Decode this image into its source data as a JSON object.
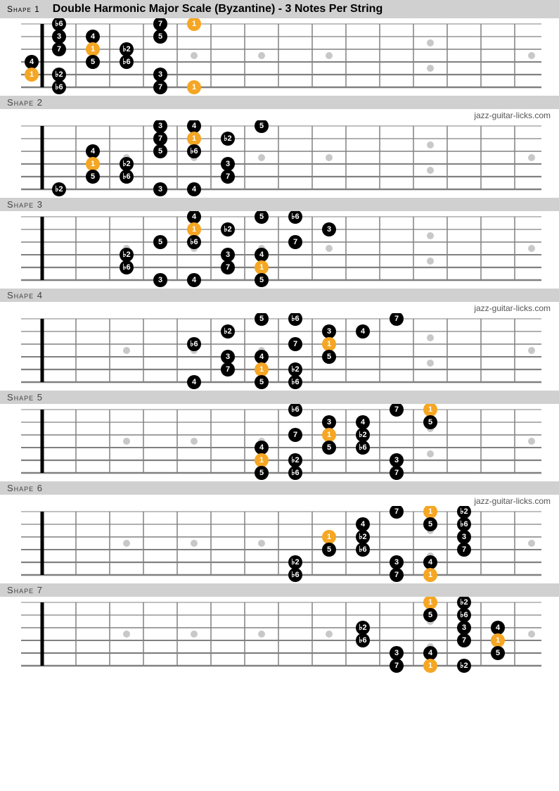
{
  "title": "Double Harmonic Major Scale (Byzantine) - 3 Notes Per String",
  "credit": "jazz-guitar-licks.com",
  "layout": {
    "fret_count": 15,
    "fret_width": 48,
    "fret0_width": 30,
    "string_spacing": 18,
    "board_width": 740,
    "board_height": 110,
    "dot_radius": 10,
    "marker_frets": [
      3,
      5,
      7,
      9,
      12,
      15
    ],
    "double_marker_frets": [
      12
    ],
    "colors": {
      "string": "#808080",
      "fret_line": "#808080",
      "nut": "#000000",
      "marker": "#c8c8c8",
      "note": "#000000",
      "note_root": "#f5a623",
      "note_text": "#ffffff"
    }
  },
  "shapes": [
    {
      "label": "Shape 1",
      "show_credit": false,
      "notes": [
        {
          "s": 1,
          "f": 1,
          "t": "♭6",
          "r": 0
        },
        {
          "s": 1,
          "f": 4,
          "t": "7",
          "r": 0
        },
        {
          "s": 1,
          "f": 5,
          "t": "1",
          "r": 1
        },
        {
          "s": 2,
          "f": 1,
          "t": "3",
          "r": 0
        },
        {
          "s": 2,
          "f": 2,
          "t": "4",
          "r": 0
        },
        {
          "s": 2,
          "f": 4,
          "t": "5",
          "r": 0
        },
        {
          "s": 3,
          "f": 1,
          "t": "7",
          "r": 0
        },
        {
          "s": 3,
          "f": 2,
          "t": "1",
          "r": 1
        },
        {
          "s": 3,
          "f": 3,
          "t": "♭2",
          "r": 0
        },
        {
          "s": 4,
          "f": 0,
          "t": "4",
          "r": 0
        },
        {
          "s": 4,
          "f": 2,
          "t": "5",
          "r": 0
        },
        {
          "s": 4,
          "f": 3,
          "t": "♭6",
          "r": 0
        },
        {
          "s": 5,
          "f": 0,
          "t": "1",
          "r": 1
        },
        {
          "s": 5,
          "f": 1,
          "t": "♭2",
          "r": 0
        },
        {
          "s": 5,
          "f": 4,
          "t": "3",
          "r": 0
        },
        {
          "s": 6,
          "f": 1,
          "t": "♭6",
          "r": 0
        },
        {
          "s": 6,
          "f": 4,
          "t": "7",
          "r": 0
        },
        {
          "s": 6,
          "f": 5,
          "t": "1",
          "r": 1
        }
      ]
    },
    {
      "label": "Shape 2",
      "show_credit": true,
      "notes": [
        {
          "s": 1,
          "f": 4,
          "t": "3",
          "r": 0
        },
        {
          "s": 1,
          "f": 5,
          "t": "4",
          "r": 0
        },
        {
          "s": 1,
          "f": 7,
          "t": "5",
          "r": 0
        },
        {
          "s": 2,
          "f": 4,
          "t": "7",
          "r": 0
        },
        {
          "s": 2,
          "f": 5,
          "t": "1",
          "r": 1
        },
        {
          "s": 2,
          "f": 6,
          "t": "♭2",
          "r": 0
        },
        {
          "s": 3,
          "f": 2,
          "t": "4",
          "r": 0
        },
        {
          "s": 3,
          "f": 4,
          "t": "5",
          "r": 0
        },
        {
          "s": 3,
          "f": 5,
          "t": "♭6",
          "r": 0
        },
        {
          "s": 4,
          "f": 2,
          "t": "1",
          "r": 1
        },
        {
          "s": 4,
          "f": 3,
          "t": "♭2",
          "r": 0
        },
        {
          "s": 4,
          "f": 6,
          "t": "3",
          "r": 0
        },
        {
          "s": 5,
          "f": 2,
          "t": "5",
          "r": 0
        },
        {
          "s": 5,
          "f": 3,
          "t": "♭6",
          "r": 0
        },
        {
          "s": 5,
          "f": 6,
          "t": "7",
          "r": 0
        },
        {
          "s": 6,
          "f": 1,
          "t": "♭2",
          "r": 0
        },
        {
          "s": 6,
          "f": 4,
          "t": "3",
          "r": 0
        },
        {
          "s": 6,
          "f": 5,
          "t": "4",
          "r": 0
        }
      ]
    },
    {
      "label": "Shape 3",
      "show_credit": false,
      "notes": [
        {
          "s": 1,
          "f": 5,
          "t": "4",
          "r": 0
        },
        {
          "s": 1,
          "f": 7,
          "t": "5",
          "r": 0
        },
        {
          "s": 1,
          "f": 8,
          "t": "♭6",
          "r": 0
        },
        {
          "s": 2,
          "f": 5,
          "t": "1",
          "r": 1
        },
        {
          "s": 2,
          "f": 6,
          "t": "♭2",
          "r": 0
        },
        {
          "s": 2,
          "f": 9,
          "t": "3",
          "r": 0
        },
        {
          "s": 3,
          "f": 4,
          "t": "5",
          "r": 0
        },
        {
          "s": 3,
          "f": 5,
          "t": "♭6",
          "r": 0
        },
        {
          "s": 3,
          "f": 8,
          "t": "7",
          "r": 0
        },
        {
          "s": 4,
          "f": 3,
          "t": "♭2",
          "r": 0
        },
        {
          "s": 4,
          "f": 6,
          "t": "3",
          "r": 0
        },
        {
          "s": 4,
          "f": 7,
          "t": "4",
          "r": 0
        },
        {
          "s": 5,
          "f": 3,
          "t": "♭6",
          "r": 0
        },
        {
          "s": 5,
          "f": 6,
          "t": "7",
          "r": 0
        },
        {
          "s": 5,
          "f": 7,
          "t": "1",
          "r": 1
        },
        {
          "s": 6,
          "f": 4,
          "t": "3",
          "r": 0
        },
        {
          "s": 6,
          "f": 5,
          "t": "4",
          "r": 0
        },
        {
          "s": 6,
          "f": 7,
          "t": "5",
          "r": 0
        }
      ]
    },
    {
      "label": "Shape 4",
      "show_credit": true,
      "notes": [
        {
          "s": 1,
          "f": 7,
          "t": "5",
          "r": 0
        },
        {
          "s": 1,
          "f": 8,
          "t": "♭6",
          "r": 0
        },
        {
          "s": 1,
          "f": 11,
          "t": "7",
          "r": 0
        },
        {
          "s": 2,
          "f": 6,
          "t": "♭2",
          "r": 0
        },
        {
          "s": 2,
          "f": 9,
          "t": "3",
          "r": 0
        },
        {
          "s": 2,
          "f": 10,
          "t": "4",
          "r": 0
        },
        {
          "s": 3,
          "f": 5,
          "t": "♭6",
          "r": 0
        },
        {
          "s": 3,
          "f": 8,
          "t": "7",
          "r": 0
        },
        {
          "s": 3,
          "f": 9,
          "t": "1",
          "r": 1
        },
        {
          "s": 4,
          "f": 6,
          "t": "3",
          "r": 0
        },
        {
          "s": 4,
          "f": 7,
          "t": "4",
          "r": 0
        },
        {
          "s": 4,
          "f": 9,
          "t": "5",
          "r": 0
        },
        {
          "s": 5,
          "f": 6,
          "t": "7",
          "r": 0
        },
        {
          "s": 5,
          "f": 7,
          "t": "1",
          "r": 1
        },
        {
          "s": 5,
          "f": 8,
          "t": "♭2",
          "r": 0
        },
        {
          "s": 6,
          "f": 5,
          "t": "4",
          "r": 0
        },
        {
          "s": 6,
          "f": 7,
          "t": "5",
          "r": 0
        },
        {
          "s": 6,
          "f": 8,
          "t": "♭6",
          "r": 0
        }
      ]
    },
    {
      "label": "Shape 5",
      "show_credit": false,
      "notes": [
        {
          "s": 1,
          "f": 8,
          "t": "♭6",
          "r": 0
        },
        {
          "s": 1,
          "f": 11,
          "t": "7",
          "r": 0
        },
        {
          "s": 1,
          "f": 12,
          "t": "1",
          "r": 1
        },
        {
          "s": 2,
          "f": 9,
          "t": "3",
          "r": 0
        },
        {
          "s": 2,
          "f": 10,
          "t": "4",
          "r": 0
        },
        {
          "s": 2,
          "f": 12,
          "t": "5",
          "r": 0
        },
        {
          "s": 3,
          "f": 8,
          "t": "7",
          "r": 0
        },
        {
          "s": 3,
          "f": 9,
          "t": "1",
          "r": 1
        },
        {
          "s": 3,
          "f": 10,
          "t": "♭2",
          "r": 0
        },
        {
          "s": 4,
          "f": 7,
          "t": "4",
          "r": 0
        },
        {
          "s": 4,
          "f": 9,
          "t": "5",
          "r": 0
        },
        {
          "s": 4,
          "f": 10,
          "t": "♭6",
          "r": 0
        },
        {
          "s": 5,
          "f": 7,
          "t": "1",
          "r": 1
        },
        {
          "s": 5,
          "f": 8,
          "t": "♭2",
          "r": 0
        },
        {
          "s": 5,
          "f": 11,
          "t": "3",
          "r": 0
        },
        {
          "s": 6,
          "f": 7,
          "t": "5",
          "r": 0
        },
        {
          "s": 6,
          "f": 8,
          "t": "♭6",
          "r": 0
        },
        {
          "s": 6,
          "f": 11,
          "t": "7",
          "r": 0
        }
      ]
    },
    {
      "label": "Shape 6",
      "show_credit": true,
      "notes": [
        {
          "s": 1,
          "f": 11,
          "t": "7",
          "r": 0
        },
        {
          "s": 1,
          "f": 12,
          "t": "1",
          "r": 1
        },
        {
          "s": 1,
          "f": 13,
          "t": "♭2",
          "r": 0
        },
        {
          "s": 2,
          "f": 10,
          "t": "4",
          "r": 0
        },
        {
          "s": 2,
          "f": 12,
          "t": "5",
          "r": 0
        },
        {
          "s": 2,
          "f": 13,
          "t": "♭6",
          "r": 0
        },
        {
          "s": 3,
          "f": 9,
          "t": "1",
          "r": 1
        },
        {
          "s": 3,
          "f": 10,
          "t": "♭2",
          "r": 0
        },
        {
          "s": 3,
          "f": 13,
          "t": "3",
          "r": 0
        },
        {
          "s": 4,
          "f": 9,
          "t": "5",
          "r": 0
        },
        {
          "s": 4,
          "f": 10,
          "t": "♭6",
          "r": 0
        },
        {
          "s": 4,
          "f": 13,
          "t": "7",
          "r": 0
        },
        {
          "s": 5,
          "f": 8,
          "t": "♭2",
          "r": 0
        },
        {
          "s": 5,
          "f": 11,
          "t": "3",
          "r": 0
        },
        {
          "s": 5,
          "f": 12,
          "t": "4",
          "r": 0
        },
        {
          "s": 6,
          "f": 8,
          "t": "♭6",
          "r": 0
        },
        {
          "s": 6,
          "f": 11,
          "t": "7",
          "r": 0
        },
        {
          "s": 6,
          "f": 12,
          "t": "1",
          "r": 1
        }
      ]
    },
    {
      "label": "Shape 7",
      "show_credit": false,
      "notes": [
        {
          "s": 1,
          "f": 12,
          "t": "1",
          "r": 1
        },
        {
          "s": 1,
          "f": 13,
          "t": "♭2",
          "r": 0
        },
        {
          "s": 1,
          "f": 16,
          "t": "3",
          "r": 0
        },
        {
          "s": 2,
          "f": 12,
          "t": "5",
          "r": 0
        },
        {
          "s": 2,
          "f": 13,
          "t": "♭6",
          "r": 0
        },
        {
          "s": 2,
          "f": 16,
          "t": "7",
          "r": 0
        },
        {
          "s": 3,
          "f": 10,
          "t": "♭2",
          "r": 0
        },
        {
          "s": 3,
          "f": 13,
          "t": "3",
          "r": 0
        },
        {
          "s": 3,
          "f": 14,
          "t": "4",
          "r": 0
        },
        {
          "s": 4,
          "f": 10,
          "t": "♭6",
          "r": 0
        },
        {
          "s": 4,
          "f": 13,
          "t": "7",
          "r": 0
        },
        {
          "s": 4,
          "f": 14,
          "t": "1",
          "r": 1
        },
        {
          "s": 5,
          "f": 11,
          "t": "3",
          "r": 0
        },
        {
          "s": 5,
          "f": 12,
          "t": "4",
          "r": 0
        },
        {
          "s": 5,
          "f": 14,
          "t": "5",
          "r": 0
        },
        {
          "s": 6,
          "f": 11,
          "t": "7",
          "r": 0
        },
        {
          "s": 6,
          "f": 12,
          "t": "1",
          "r": 1
        },
        {
          "s": 6,
          "f": 13,
          "t": "♭2",
          "r": 0
        }
      ]
    }
  ]
}
